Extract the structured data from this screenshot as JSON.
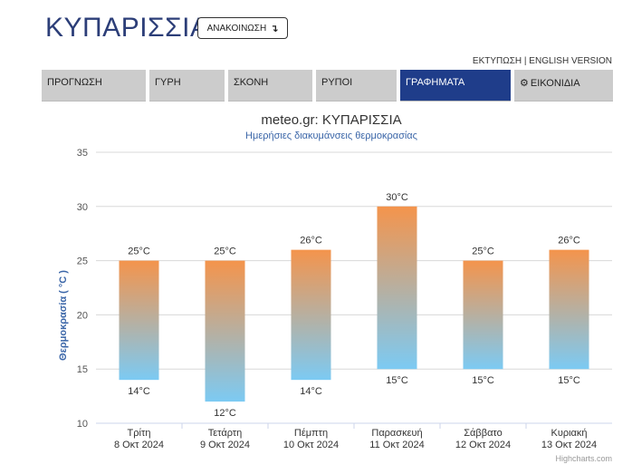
{
  "header": {
    "city": "ΚΥΠΑΡΙΣΣΙΑ",
    "announce_label": "ΑΝΑΚΟΙΝΩΣΗ",
    "announce_icon": "↴"
  },
  "links": {
    "print": "ΕΚΤΥΠΩΣΗ",
    "separator": " | ",
    "english": "ENGLISH VERSION"
  },
  "nav": {
    "tabs": [
      {
        "label": "ΠΡΟΓΝΩΣΗ",
        "active": false
      },
      {
        "label": "ΓΥΡΗ",
        "active": false
      },
      {
        "label": "ΣΚΟΝΗ",
        "active": false
      },
      {
        "label": "ΡΥΠΟΙ",
        "active": false
      },
      {
        "label": "ΓΡΑΦΗΜΑΤΑ",
        "active": true
      },
      {
        "label": "ΕΙΚΟΝΙΔΙΑ",
        "active": false,
        "icon": "gear-icon"
      }
    ]
  },
  "chart_data": {
    "type": "bar",
    "subtype": "columnrange",
    "title": "meteo.gr: ΚΥΠΑΡΙΣΣΙΑ",
    "subtitle": "Ημερήσιες διακυμάνσεις θερμοκρασίας",
    "ylabel": "Θερμοκρασία ( °C )",
    "xlabel": "",
    "ylim": [
      10,
      35
    ],
    "yticks": [
      10,
      15,
      20,
      25,
      30,
      35
    ],
    "grid": true,
    "legend": "none",
    "unit": "°C",
    "categories": [
      {
        "day": "Τρίτη",
        "date": "8 Οκτ 2024"
      },
      {
        "day": "Τετάρτη",
        "date": "9 Οκτ 2024"
      },
      {
        "day": "Πέμπτη",
        "date": "10 Οκτ 2024"
      },
      {
        "day": "Παρασκευή",
        "date": "11 Οκτ 2024"
      },
      {
        "day": "Σάββατο",
        "date": "12 Οκτ 2024"
      },
      {
        "day": "Κυριακή",
        "date": "13 Οκτ 2024"
      }
    ],
    "series": [
      {
        "low": [
          14,
          12,
          14,
          15,
          15,
          15
        ],
        "high": [
          25,
          25,
          26,
          30,
          25,
          26
        ]
      }
    ],
    "colors": {
      "top": "#f4944c",
      "bottom": "#7ccaf3",
      "grid": "#d8d8d8",
      "title": "#333333",
      "subtitle": "#3b66a8",
      "ylabel": "#3b66a8"
    },
    "credits": "Highcharts.com"
  }
}
